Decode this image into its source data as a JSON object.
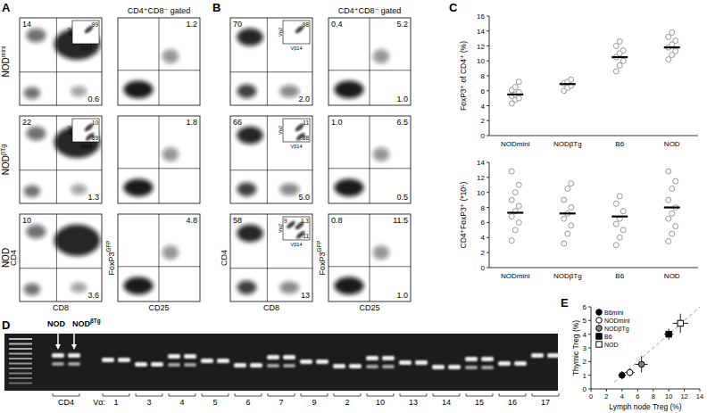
{
  "panel_labels": [
    "A",
    "B",
    "C",
    "D",
    "E"
  ],
  "flow": {
    "gate_header": "CD4⁺CD8⁻ gated",
    "row_labels": [
      {
        "text": "NOD",
        "sup": "mini"
      },
      {
        "text": "NOD",
        "sup": "βTg"
      },
      {
        "text": "NOD"
      }
    ],
    "axes": {
      "cd4": "CD4",
      "cd8": "CD8",
      "foxp3": {
        "text": "FoxP3",
        "sup": "GFP"
      },
      "cd25": "CD25",
      "va2": "Vα2",
      "vb14": "Vβ14"
    },
    "panels": [
      {
        "rows": [
          {
            "cd4_cd8": {
              "upper_left": "14",
              "lower_right": "0.6",
              "inset": {
                "upper_right": "99"
              }
            },
            "foxp3_cd25": {
              "upper_right": "1.2"
            }
          },
          {
            "cd4_cd8": {
              "upper_left": "22",
              "lower_right": "1.3",
              "inset": {
                "upper_right": "10",
                "lower_right": "89"
              }
            },
            "foxp3_cd25": {
              "upper_right": "1.8"
            }
          },
          {
            "cd4_cd8": {
              "upper_left": "10",
              "lower_right": "3.6"
            },
            "foxp3_cd25": {
              "upper_right": "4.8"
            }
          }
        ]
      },
      {
        "rows": [
          {
            "cd4_cd8": {
              "upper_left": "70",
              "lower_right": "2.0",
              "inset": {
                "upper_right": "98"
              }
            },
            "foxp3_cd25": {
              "upper_left": "0.4",
              "upper_right": "5.2",
              "lower_right": "1.0"
            }
          },
          {
            "cd4_cd8": {
              "upper_left": "66",
              "lower_right": "5.0",
              "inset": {
                "upper_right": "11",
                "lower_right": "88"
              }
            },
            "foxp3_cd25": {
              "upper_left": "1.0",
              "upper_right": "6.5",
              "lower_right": "0.5"
            }
          },
          {
            "cd4_cd8": {
              "upper_left": "58",
              "lower_right": "13",
              "inset": {
                "upper_left": "9",
                "upper_right": "1.3",
                "lower_right": "11"
              }
            },
            "foxp3_cd25": {
              "upper_left": "0.8",
              "upper_right": "11.5",
              "lower_right": "1.0"
            }
          }
        ]
      }
    ]
  },
  "gel": {
    "sample_labels": [
      {
        "text": "NOD"
      },
      {
        "text": "NOD",
        "sup": "βTg"
      }
    ],
    "prefix": "Vα:",
    "lanes": [
      "CD4",
      "1",
      "3",
      "4",
      "5",
      "6",
      "7",
      "9",
      "2",
      "10",
      "13",
      "14",
      "15",
      "16",
      "17"
    ]
  },
  "chart_data": [
    {
      "type": "dot",
      "y_label": "FoxP3⁺ of CD4⁺ (%)",
      "categories": [
        "NODmini",
        "NODβTg",
        "B6",
        "NOD"
      ],
      "values": [
        [
          4.3,
          4.8,
          5.0,
          5.3,
          5.5,
          5.8,
          6.1,
          6.5,
          7.2
        ],
        [
          6.0,
          6.4,
          6.7,
          7.0,
          7.2,
          7.5
        ],
        [
          8.6,
          9.4,
          10.0,
          10.5,
          11.0,
          11.4,
          12.0,
          12.6
        ],
        [
          10.2,
          10.8,
          11.3,
          11.8,
          12.2,
          12.7,
          13.2,
          13.8
        ]
      ],
      "means": [
        5.5,
        6.9,
        10.5,
        11.8
      ],
      "color": "#999999",
      "marker": "open-circle",
      "ylim": [
        0,
        16
      ],
      "yticks": [
        0,
        2,
        4,
        6,
        8,
        10,
        12,
        14,
        16
      ]
    },
    {
      "type": "dot",
      "y_label": "CD4⁺FoxP3⁺ (*10⁵)",
      "categories": [
        "NODmini",
        "NODβTg",
        "B6",
        "NOD"
      ],
      "values": [
        [
          3.6,
          5.0,
          6.0,
          6.8,
          7.5,
          8.2,
          9.0,
          10.0,
          11.0,
          12.8
        ],
        [
          3.2,
          4.5,
          5.6,
          6.5,
          7.2,
          8.0,
          9.0,
          10.5,
          11.2
        ],
        [
          3.0,
          4.0,
          5.0,
          5.8,
          6.5,
          7.5,
          8.5,
          9.5
        ],
        [
          3.5,
          4.5,
          5.5,
          6.5,
          7.2,
          8.0,
          9.0,
          10.5,
          11.5,
          12.8
        ]
      ],
      "means": [
        7.3,
        7.2,
        6.8,
        8.0
      ],
      "color": "#999999",
      "marker": "open-circle",
      "ylim": [
        0,
        14
      ],
      "yticks": [
        0,
        2,
        4,
        6,
        8,
        10,
        12,
        14
      ]
    },
    {
      "type": "scatter",
      "x_label": "Lymph node Treg (%)",
      "y_label": "Thymic Treg (%)",
      "xlim": [
        0,
        14
      ],
      "xticks": [
        0,
        2,
        4,
        6,
        8,
        10,
        12,
        14
      ],
      "ylim": [
        0,
        6
      ],
      "yticks": [
        0,
        1,
        2,
        3,
        4,
        5,
        6
      ],
      "legend": "top-left",
      "series": [
        {
          "name": "B6mini",
          "color": "#000000",
          "marker": "circle",
          "x": [
            4.0
          ],
          "values": [
            1.0
          ],
          "x_errors": [
            0.5
          ],
          "errors": [
            0.3
          ]
        },
        {
          "name": "NODmini",
          "color": "#ffffff",
          "marker": "circle",
          "x": [
            5.0
          ],
          "values": [
            1.2
          ],
          "x_errors": [
            0.6
          ],
          "errors": [
            0.3
          ]
        },
        {
          "name": "NODβTg",
          "color": "#808080",
          "marker": "circle",
          "x": [
            6.5
          ],
          "values": [
            1.8
          ],
          "x_errors": [
            0.8
          ],
          "errors": [
            0.6
          ]
        },
        {
          "name": "B6",
          "color": "#000000",
          "marker": "square",
          "x": [
            10.0
          ],
          "values": [
            4.0
          ],
          "x_errors": [
            0.6
          ],
          "errors": [
            0.4
          ]
        },
        {
          "name": "NOD",
          "color": "#ffffff",
          "marker": "square",
          "x": [
            11.5
          ],
          "values": [
            4.8
          ],
          "x_errors": [
            1.0
          ],
          "errors": [
            0.7
          ]
        },
        {
          "type": "line",
          "line_style": "dashed",
          "color": "#999999",
          "x": [
            3,
            14
          ],
          "values": [
            0.5,
            6.0
          ]
        }
      ]
    }
  ]
}
